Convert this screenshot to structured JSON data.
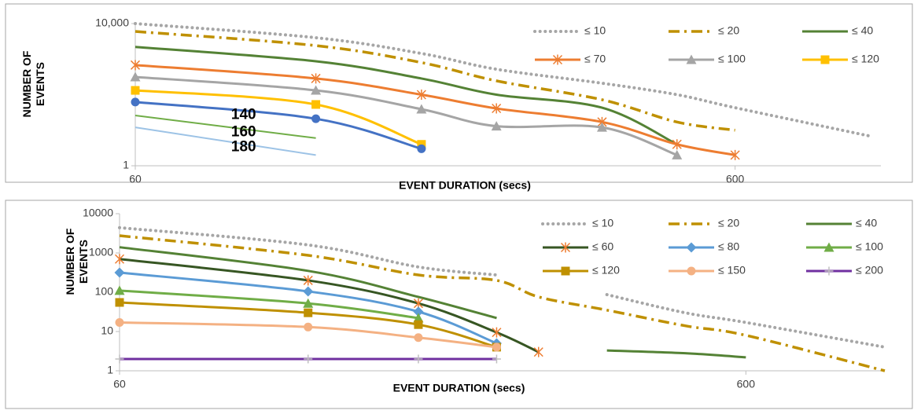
{
  "chart_data": [
    {
      "type": "line",
      "xlabel": "EVENT DURATION (secs)",
      "ylabel": "NUMBER OF EVENTS",
      "log_x": true,
      "log_y": true,
      "xlim": [
        60,
        1050
      ],
      "ylim": [
        1,
        10000
      ],
      "xticks": [
        60,
        600
      ],
      "yticks": [
        1,
        {
          "value": 10000,
          "label": "10,000"
        }
      ],
      "legend": "top-right",
      "smooth": true,
      "x": [
        60,
        120,
        180,
        240,
        360,
        480,
        600,
        1000
      ],
      "series": [
        {
          "name": "≤ 10",
          "color": "#a6a6a6",
          "dash": "dot",
          "marker": null,
          "values": [
            10000,
            4000,
            1440,
            520,
            210,
            100,
            43,
            7
          ]
        },
        {
          "name": "≤ 20",
          "color": "#bf9000",
          "dash": "dashdot",
          "marker": null,
          "values": [
            6000,
            2400,
            800,
            245,
            72,
            17,
            10,
            null
          ]
        },
        {
          "name": "≤ 40",
          "color": "#548235",
          "dash": "solid",
          "marker": null,
          "values": [
            2200,
            870,
            285,
            100,
            43,
            4,
            null,
            null
          ]
        },
        {
          "name": "≤ 70",
          "color": "#ed7d31",
          "dash": "solid",
          "marker": "star",
          "values": [
            680,
            285,
            100,
            41,
            17,
            4,
            2,
            null
          ]
        },
        {
          "name": "≤ 100",
          "color": "#a5a5a5",
          "dash": "solid",
          "marker": "triangle",
          "values": [
            315,
            132,
            39,
            13,
            12,
            2,
            null,
            null
          ]
        },
        {
          "name": "≤ 120",
          "color": "#ffc000",
          "dash": "solid",
          "marker": "square",
          "values": [
            132,
            53,
            4,
            null,
            null,
            null,
            null,
            null
          ]
        },
        {
          "name": "140",
          "color": "#4472c4",
          "dash": "solid",
          "marker": "circle",
          "in_legend": false,
          "values": [
            62,
            21,
            3,
            null,
            null,
            null,
            null,
            null
          ]
        },
        {
          "name": "160",
          "color": "#70ad47",
          "dash": "thin",
          "marker": null,
          "in_legend": false,
          "values": [
            26,
            6,
            null,
            null,
            null,
            null,
            null,
            null
          ]
        },
        {
          "name": "180",
          "color": "#9dc3e6",
          "dash": "thin",
          "marker": null,
          "in_legend": false,
          "values": [
            12,
            2,
            null,
            null,
            null,
            null,
            null,
            null
          ]
        }
      ]
    },
    {
      "type": "line",
      "xlabel": "EVENT DURATION (secs)",
      "ylabel": "NUMBER OF EVENTS",
      "log_x": true,
      "log_y": true,
      "xlim": [
        60,
        1000
      ],
      "ylim": [
        1,
        10000
      ],
      "xticks": [
        60,
        600
      ],
      "yticks": [
        1,
        10,
        100,
        1000,
        10000
      ],
      "legend": "top-right",
      "smooth": true,
      "x": [
        60,
        120,
        180,
        240,
        280,
        360,
        480,
        600,
        1000
      ],
      "series": [
        {
          "name": "≤ 10",
          "color": "#a6a6a6",
          "dash": "dot",
          "marker": null,
          "values": [
            4400,
            1600,
            440,
            275,
            null,
            87,
            30,
            17,
            4
          ]
        },
        {
          "name": "≤ 20",
          "color": "#bf9000",
          "dash": "dashdot",
          "marker": null,
          "values": [
            2750,
            870,
            275,
            200,
            76,
            35,
            14,
            8,
            1
          ]
        },
        {
          "name": "≤ 40",
          "color": "#548235",
          "dash": "solid",
          "marker": null,
          "values": [
            1400,
            350,
            76,
            22,
            null,
            3.3,
            2.8,
            2.2,
            null
          ]
        },
        {
          "name": "≤ 60",
          "color": "#375623",
          "dash": "solid",
          "marker": "star",
          "marker_color": "#ed7d31",
          "values": [
            700,
            200,
            52,
            9.5,
            3,
            null,
            null,
            null,
            null
          ]
        },
        {
          "name": "≤ 80",
          "color": "#5b9bd5",
          "dash": "solid",
          "marker": "diamond",
          "values": [
            316,
            105,
            32,
            5,
            null,
            null,
            null,
            null,
            null
          ]
        },
        {
          "name": "≤ 100",
          "color": "#70ad47",
          "dash": "solid",
          "marker": "triangle",
          "values": [
            110,
            52,
            22,
            null,
            null,
            null,
            null,
            null,
            null
          ]
        },
        {
          "name": "≤ 120",
          "color": "#bf9000",
          "dash": "solid",
          "marker": "square",
          "values": [
            55,
            30,
            15,
            4,
            null,
            null,
            null,
            null,
            null
          ]
        },
        {
          "name": "≤ 150",
          "color": "#f4b183",
          "dash": "solid",
          "marker": "circle",
          "values": [
            17,
            13,
            7,
            4,
            null,
            null,
            null,
            null,
            null
          ]
        },
        {
          "name": "≤ 200",
          "color": "#7030a0",
          "dash": "solid",
          "marker": "plus",
          "marker_color": "#bfbfbf",
          "values": [
            2,
            2,
            2,
            2,
            null,
            null,
            null,
            null,
            null
          ]
        }
      ]
    }
  ]
}
